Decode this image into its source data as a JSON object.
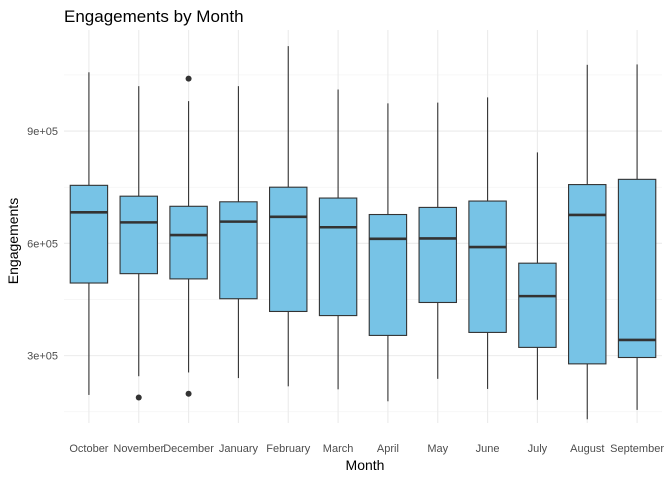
{
  "chart_data": {
    "type": "boxplot",
    "title": "Engagements by Month",
    "xlabel": "Month",
    "ylabel": "Engagements",
    "ylim": [
      120000,
      1170000
    ],
    "y_ticks": [
      300000,
      600000,
      900000
    ],
    "y_tick_labels": [
      "3e+05",
      "6e+05",
      "9e+05"
    ],
    "grid": true,
    "fill_color": "#77c3e6",
    "line_color": "#333333",
    "categories": [
      "October",
      "November",
      "December",
      "January",
      "February",
      "March",
      "April",
      "May",
      "June",
      "July",
      "August",
      "September"
    ],
    "boxes": [
      {
        "category": "October",
        "whisker_low": 195000,
        "q1": 494000,
        "median": 683000,
        "q3": 755000,
        "whisker_high": 1057000,
        "outliers": []
      },
      {
        "category": "November",
        "whisker_low": 245000,
        "q1": 519000,
        "median": 656000,
        "q3": 726000,
        "whisker_high": 1020000,
        "outliers": [
          188000
        ]
      },
      {
        "category": "December",
        "whisker_low": 255000,
        "q1": 505000,
        "median": 622000,
        "q3": 699000,
        "whisker_high": 980000,
        "outliers": [
          198000,
          1040000
        ]
      },
      {
        "category": "January",
        "whisker_low": 240000,
        "q1": 452000,
        "median": 658000,
        "q3": 711000,
        "whisker_high": 1020000,
        "outliers": []
      },
      {
        "category": "February",
        "whisker_low": 218000,
        "q1": 418000,
        "median": 671000,
        "q3": 750000,
        "whisker_high": 1127000,
        "outliers": []
      },
      {
        "category": "March",
        "whisker_low": 210000,
        "q1": 407000,
        "median": 643000,
        "q3": 721000,
        "whisker_high": 1011000,
        "outliers": []
      },
      {
        "category": "April",
        "whisker_low": 178000,
        "q1": 354000,
        "median": 612000,
        "q3": 677000,
        "whisker_high": 974000,
        "outliers": []
      },
      {
        "category": "May",
        "whisker_low": 238000,
        "q1": 442000,
        "median": 613000,
        "q3": 696000,
        "whisker_high": 976000,
        "outliers": []
      },
      {
        "category": "June",
        "whisker_low": 211000,
        "q1": 362000,
        "median": 590000,
        "q3": 713000,
        "whisker_high": 990000,
        "outliers": []
      },
      {
        "category": "July",
        "whisker_low": 182000,
        "q1": 322000,
        "median": 459000,
        "q3": 547000,
        "whisker_high": 843000,
        "outliers": []
      },
      {
        "category": "August",
        "whisker_low": 130000,
        "q1": 278000,
        "median": 676000,
        "q3": 757000,
        "whisker_high": 1077000,
        "outliers": []
      },
      {
        "category": "September",
        "whisker_low": 155000,
        "q1": 295000,
        "median": 342000,
        "q3": 771000,
        "whisker_high": 1078000,
        "outliers": []
      }
    ]
  }
}
